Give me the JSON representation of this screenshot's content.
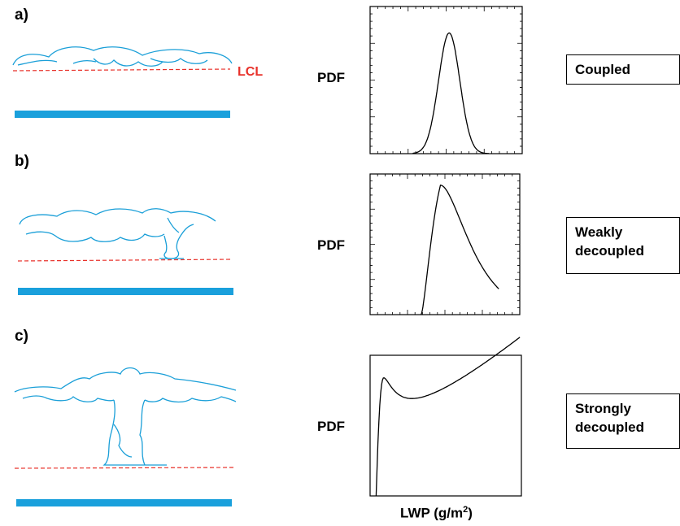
{
  "panels": [
    {
      "label": "a)",
      "regime": "Coupled",
      "pdf_label": "PDF",
      "lcl_label": "LCL"
    },
    {
      "label": "b)",
      "regime_line1": "Weakly",
      "regime_line2": "decoupled",
      "pdf_label": "PDF"
    },
    {
      "label": "c)",
      "regime_line1": "Strongly",
      "regime_line2": "decoupled",
      "pdf_label": "PDF"
    }
  ],
  "xaxis": {
    "label_main": "LWP (g/m",
    "label_sup": "2",
    "label_end": ")"
  },
  "colors": {
    "cloud": "#1a9fd8",
    "surface": "#1aa0dc",
    "lcl_line": "#e8312a",
    "curve": "#000000"
  }
}
